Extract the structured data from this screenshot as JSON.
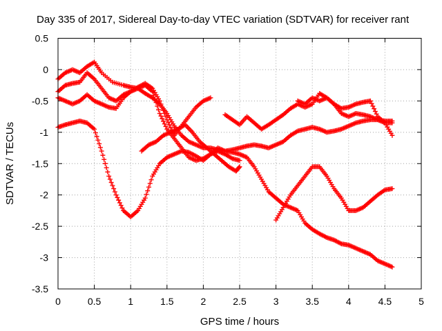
{
  "chart_data": {
    "type": "scatter",
    "title": "Day 335 of 2017, Sidereal Day-to-day VTEC variation (SDTVAR) for receiver rant",
    "xlabel": "GPS time / hours",
    "ylabel": "SDTVAR / TECUs",
    "xlim": [
      0,
      5
    ],
    "ylim": [
      -3.5,
      0.5
    ],
    "xticks": [
      "0",
      "0.5",
      "1",
      "1.5",
      "2",
      "2.5",
      "3",
      "3.5",
      "4",
      "4.5",
      "5"
    ],
    "yticks": [
      "0.5",
      "0",
      "-0.5",
      "-1",
      "-1.5",
      "-2",
      "-2.5",
      "-3",
      "-3.5"
    ],
    "grid": true,
    "marker": "+",
    "color": "#ff0000",
    "series": [
      {
        "x": [
          0.0,
          0.1,
          0.2,
          0.3,
          0.4,
          0.5,
          0.6,
          0.75,
          0.9,
          1.0,
          1.1,
          1.2,
          1.3,
          1.4,
          1.5,
          1.6,
          1.7,
          1.8,
          1.9,
          2.0,
          2.1,
          2.2,
          2.3,
          2.4,
          2.5,
          2.6,
          2.7,
          2.8,
          2.9,
          3.0,
          3.1,
          3.2,
          3.3,
          3.4,
          3.5,
          3.6,
          3.7,
          3.8,
          3.9,
          4.0,
          4.1,
          4.2,
          4.3,
          4.4,
          4.5,
          4.6
        ],
        "y": [
          -0.15,
          -0.05,
          0.0,
          -0.05,
          0.05,
          0.12,
          -0.05,
          -0.2,
          -0.25,
          -0.28,
          -0.3,
          -0.38,
          -0.45,
          -0.55,
          -0.7,
          -0.9,
          -1.05,
          -1.15,
          -1.2,
          -1.25,
          -1.25,
          -1.28,
          -1.3,
          -1.28,
          -1.25,
          -1.22,
          -1.2,
          -1.22,
          -1.25,
          -1.2,
          -1.15,
          -1.05,
          -0.98,
          -0.95,
          -0.92,
          -0.95,
          -1.0,
          -0.98,
          -0.95,
          -0.9,
          -0.85,
          -0.82,
          -0.8,
          -0.8,
          -0.82,
          -0.82
        ]
      },
      {
        "x": [
          0.0,
          0.1,
          0.2,
          0.3,
          0.4,
          0.5,
          0.6,
          0.7,
          0.8,
          0.9,
          1.0,
          1.1,
          1.2,
          1.3,
          1.4,
          1.5,
          1.6,
          1.7,
          1.8,
          1.9,
          2.0,
          2.1,
          2.2,
          2.3,
          2.4,
          2.5,
          2.6,
          2.7,
          2.8,
          2.9,
          3.0,
          3.1,
          3.2,
          3.3,
          3.4,
          3.5,
          3.6,
          3.7,
          3.8,
          3.9,
          4.0,
          4.1,
          4.2,
          4.3,
          4.4,
          4.5,
          4.6
        ],
        "y": [
          -0.35,
          -0.25,
          -0.22,
          -0.2,
          -0.05,
          -0.15,
          -0.3,
          -0.45,
          -0.5,
          -0.4,
          -0.35,
          -0.3,
          -0.25,
          -0.35,
          -0.7,
          -0.95,
          -1.1,
          -1.25,
          -1.4,
          -1.45,
          -1.42,
          -1.35,
          -1.25,
          -1.3,
          -1.32,
          -1.35,
          -1.4,
          -1.55,
          -1.75,
          -1.95,
          -2.05,
          -2.15,
          -2.2,
          -2.25,
          -2.45,
          -2.55,
          -2.62,
          -2.68,
          -2.72,
          -2.78,
          -2.8,
          -2.85,
          -2.9,
          -2.95,
          -3.05,
          -3.1,
          -3.15
        ]
      },
      {
        "x": [
          0.0,
          0.1,
          0.2,
          0.3,
          0.4,
          0.5,
          0.6,
          0.7,
          0.8,
          0.9,
          1.0,
          1.1,
          1.2,
          1.3,
          1.4,
          1.5,
          1.6,
          1.7,
          1.8,
          1.9,
          2.0,
          2.1
        ],
        "y": [
          -0.45,
          -0.5,
          -0.55,
          -0.5,
          -0.4,
          -0.5,
          -0.55,
          -0.6,
          -0.62,
          -0.45,
          -0.35,
          -0.28,
          -0.22,
          -0.3,
          -0.5,
          -0.8,
          -1.05,
          -0.9,
          -0.75,
          -0.6,
          -0.5,
          -0.45
        ]
      },
      {
        "x": [
          0.0,
          0.1,
          0.2,
          0.3,
          0.4,
          0.5,
          0.6,
          0.7,
          0.8,
          0.9,
          1.0,
          1.1,
          1.2,
          1.3,
          1.4,
          1.5,
          1.6,
          1.7,
          1.8,
          1.9,
          2.0,
          2.1,
          2.2,
          2.3,
          2.4,
          2.5
        ],
        "y": [
          -0.92,
          -0.88,
          -0.85,
          -0.82,
          -0.85,
          -0.95,
          -1.3,
          -1.7,
          -2.0,
          -2.25,
          -2.35,
          -2.25,
          -2.05,
          -1.7,
          -1.5,
          -1.4,
          -1.35,
          -1.3,
          -1.32,
          -1.38,
          -1.45,
          -1.35,
          -1.3,
          -1.35,
          -1.42,
          -1.45
        ]
      },
      {
        "x": [
          1.15,
          1.25,
          1.35,
          1.45,
          1.55,
          1.65,
          1.75,
          1.85,
          1.95,
          2.05,
          2.15,
          2.25,
          2.35,
          2.45,
          2.5
        ],
        "y": [
          -1.3,
          -1.2,
          -1.15,
          -1.05,
          -1.0,
          -0.95,
          -0.88,
          -1.0,
          -1.15,
          -1.25,
          -1.35,
          -1.45,
          -1.55,
          -1.62,
          -1.55
        ]
      },
      {
        "x": [
          2.3,
          2.4,
          2.5,
          2.6,
          2.7,
          2.8,
          2.9,
          3.0,
          3.1,
          3.2,
          3.3,
          3.4,
          3.5,
          3.6,
          3.7,
          3.8,
          3.9,
          4.0,
          4.1,
          4.2,
          4.3,
          4.4,
          4.5,
          4.6
        ],
        "y": [
          -0.72,
          -0.8,
          -0.88,
          -0.75,
          -0.85,
          -0.95,
          -0.88,
          -0.8,
          -0.72,
          -0.62,
          -0.55,
          -0.6,
          -0.55,
          -0.38,
          -0.45,
          -0.55,
          -0.62,
          -0.6,
          -0.55,
          -0.52,
          -0.5,
          -0.75,
          -0.85,
          -1.05
        ]
      },
      {
        "x": [
          3.0,
          3.1,
          3.2,
          3.3,
          3.4,
          3.5,
          3.6,
          3.7,
          3.8,
          3.9,
          4.0,
          4.1,
          4.2,
          4.3,
          4.4,
          4.5,
          4.6
        ],
        "y": [
          -2.4,
          -2.2,
          -2.0,
          -1.85,
          -1.7,
          -1.55,
          -1.55,
          -1.7,
          -1.9,
          -2.05,
          -2.25,
          -2.25,
          -2.2,
          -2.1,
          -2.0,
          -1.92,
          -1.9
        ]
      },
      {
        "x": [
          3.3,
          3.4,
          3.5,
          3.6,
          3.7,
          3.8,
          3.9,
          4.0,
          4.1,
          4.2,
          4.3,
          4.4,
          4.5,
          4.6
        ],
        "y": [
          -0.5,
          -0.55,
          -0.45,
          -0.5,
          -0.45,
          -0.55,
          -0.7,
          -0.75,
          -0.7,
          -0.72,
          -0.75,
          -0.8,
          -0.85,
          -0.85
        ]
      }
    ]
  }
}
